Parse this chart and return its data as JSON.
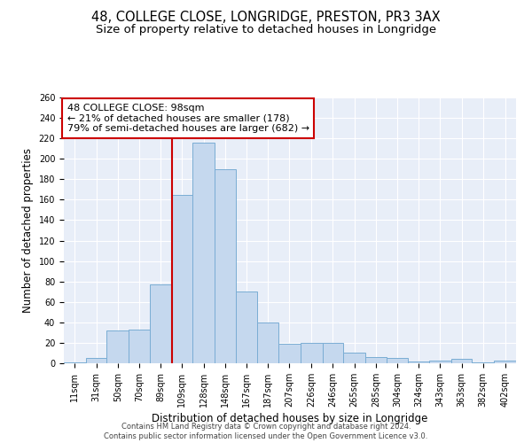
{
  "title1": "48, COLLEGE CLOSE, LONGRIDGE, PRESTON, PR3 3AX",
  "title2": "Size of property relative to detached houses in Longridge",
  "xlabel": "Distribution of detached houses by size in Longridge",
  "ylabel": "Number of detached properties",
  "footer1": "Contains HM Land Registry data © Crown copyright and database right 2024.",
  "footer2": "Contains public sector information licensed under the Open Government Licence v3.0.",
  "annotation_title": "48 COLLEGE CLOSE: 98sqm",
  "annotation_line1": "← 21% of detached houses are smaller (178)",
  "annotation_line2": "79% of semi-detached houses are larger (682) →",
  "bar_color": "#c5d8ee",
  "bar_edge_color": "#7aadd4",
  "ref_line_color": "#cc0000",
  "categories": [
    "11sqm",
    "31sqm",
    "50sqm",
    "70sqm",
    "89sqm",
    "109sqm",
    "128sqm",
    "148sqm",
    "167sqm",
    "187sqm",
    "207sqm",
    "226sqm",
    "246sqm",
    "265sqm",
    "285sqm",
    "304sqm",
    "324sqm",
    "343sqm",
    "363sqm",
    "382sqm",
    "402sqm"
  ],
  "bin_edges": [
    1,
    21,
    40,
    60,
    79,
    99,
    118,
    138,
    157,
    177,
    196,
    216,
    236,
    255,
    275,
    294,
    314,
    333,
    353,
    372,
    392,
    412
  ],
  "values": [
    1,
    5,
    32,
    33,
    77,
    165,
    216,
    190,
    70,
    40,
    19,
    20,
    20,
    10,
    6,
    5,
    2,
    3,
    4,
    1,
    3
  ],
  "ylim": [
    0,
    260
  ],
  "yticks": [
    0,
    20,
    40,
    60,
    80,
    100,
    120,
    140,
    160,
    180,
    200,
    220,
    240,
    260
  ],
  "background_color": "#e8eef8",
  "grid_color": "#ffffff",
  "title_fontsize": 10.5,
  "subtitle_fontsize": 9.5,
  "axis_label_fontsize": 8.5,
  "tick_fontsize": 7,
  "annotation_fontsize": 8,
  "footer_fontsize": 6
}
